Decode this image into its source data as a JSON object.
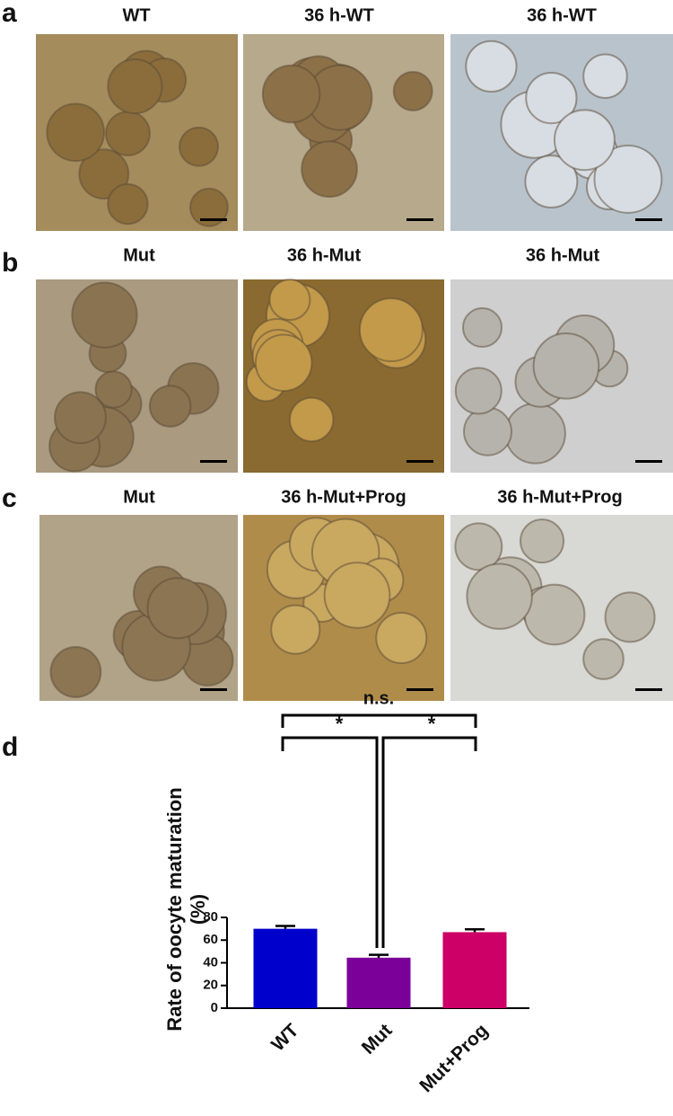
{
  "panels": [
    {
      "label": "a",
      "titles": [
        "WT",
        "36 h-WT",
        "36 h-WT"
      ]
    },
    {
      "label": "b",
      "titles": [
        "Mut",
        "36 h-Mut",
        "36 h-Mut"
      ]
    },
    {
      "label": "c",
      "titles": [
        "Mut",
        "36 h-Mut+Prog",
        "36 h-Mut+Prog"
      ]
    }
  ],
  "chart_data": {
    "type": "bar",
    "label": "d",
    "y_label": [
      "Rate of oocyte maturation",
      "(%)"
    ],
    "categories": [
      "WT",
      "Mut",
      "Mut+Prog"
    ],
    "values": [
      70,
      44.5,
      67
    ],
    "errors": [
      2.5,
      2.5,
      2.5
    ],
    "colors": [
      "#0000cc",
      "#7a0099",
      "#cc0066"
    ],
    "ylim": [
      0,
      80
    ],
    "yticks": [
      0,
      20,
      40,
      60,
      80
    ],
    "annotations": [
      "n.s.",
      "*",
      "*"
    ]
  }
}
